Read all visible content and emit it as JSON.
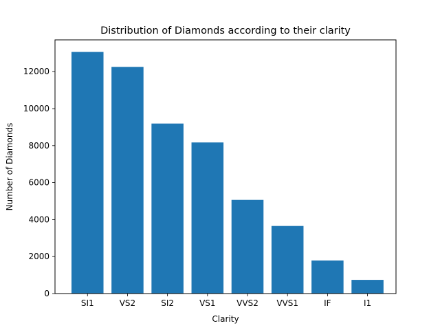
{
  "chart_data": {
    "type": "bar",
    "title": "Distribution of Diamonds according to their clarity",
    "xlabel": "Clarity",
    "ylabel": "Number of Diamonds",
    "categories": [
      "SI1",
      "VS2",
      "SI2",
      "VS1",
      "VVS2",
      "VVS1",
      "IF",
      "I1"
    ],
    "values": [
      13065,
      12258,
      9194,
      8171,
      5066,
      3655,
      1790,
      741
    ],
    "ylim": [
      0,
      13718
    ],
    "yticks": [
      0,
      2000,
      4000,
      6000,
      8000,
      10000,
      12000
    ],
    "grid": false,
    "bar_color": "#1f77b4"
  }
}
